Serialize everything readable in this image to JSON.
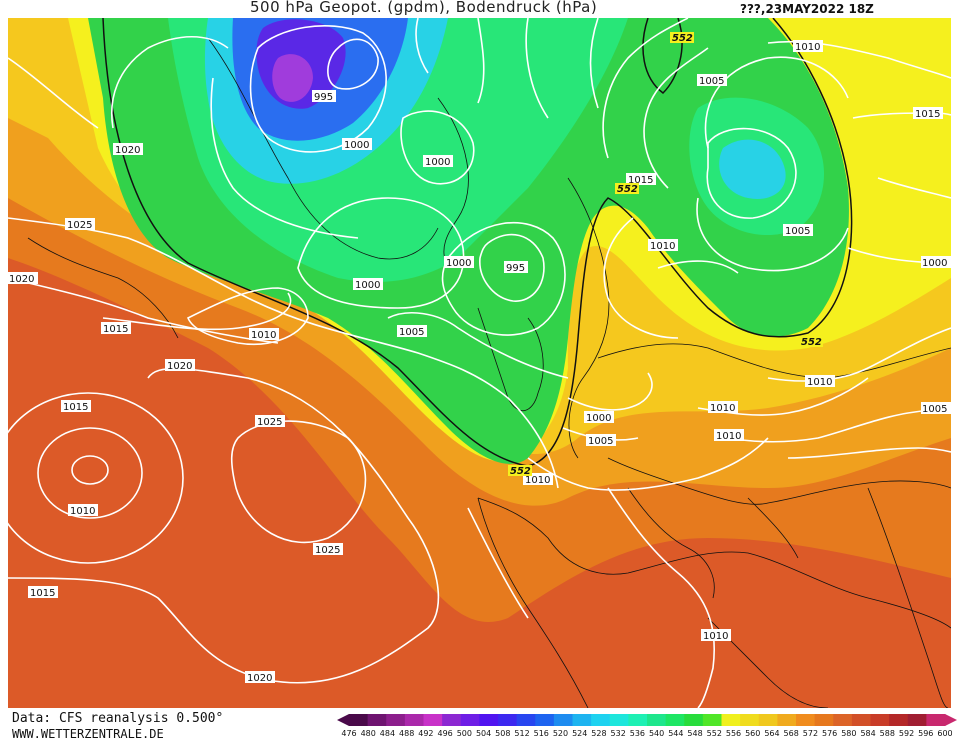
{
  "header": {
    "title": "500 hPa Geopot. (gpdm), Bodendruck (hPa)",
    "date": "???,23MAY2022 18Z"
  },
  "footer": {
    "source": "Data: CFS reanalysis 0.500°",
    "site": "WWW.WETTERZENTRALE.DE"
  },
  "colorbar": {
    "ticks": [
      "476",
      "480",
      "484",
      "488",
      "492",
      "496",
      "500",
      "504",
      "508",
      "512",
      "516",
      "520",
      "524",
      "528",
      "532",
      "536",
      "540",
      "544",
      "548",
      "552",
      "556",
      "560",
      "564",
      "568",
      "572",
      "576",
      "580",
      "584",
      "588",
      "592",
      "596",
      "600"
    ],
    "colors": [
      "#4a0a4a",
      "#6e1470",
      "#8c1e8c",
      "#aa28aa",
      "#c832c8",
      "#8c28d2",
      "#6e1ee6",
      "#5014f0",
      "#3c28f0",
      "#2846f0",
      "#1e64f0",
      "#1e8cf0",
      "#1eb4f0",
      "#1ed2f0",
      "#1ee6dc",
      "#1ef0b4",
      "#1ee68c",
      "#1ee664",
      "#28dc3c",
      "#50e628",
      "#f0f01e",
      "#f0dc1e",
      "#f0c81e",
      "#f0aa1e",
      "#f08c1e",
      "#e6781e",
      "#dc6428",
      "#d25028",
      "#c83c28",
      "#b42828",
      "#a01e32",
      "#c8286e"
    ]
  },
  "map": {
    "palette": {
      "deep_low": "#7a1ee6",
      "blue": "#2a6ef0",
      "cyan": "#28d2e6",
      "green_light": "#28e678",
      "green": "#32d24a",
      "yellow": "#f5f01e",
      "yellow_orange": "#f5c81e",
      "orange": "#f0a01e",
      "orange_dark": "#e67a1e",
      "red_orange": "#dc5a28",
      "red": "#d24628"
    },
    "isobar_labels": [
      "995",
      "1000",
      "1000",
      "995",
      "1000",
      "1000",
      "1005",
      "1020",
      "1025",
      "1020",
      "1015",
      "1010",
      "1020",
      "1015",
      "1010",
      "1015",
      "1025",
      "1025",
      "1020",
      "1010",
      "1005",
      "1000",
      "1010",
      "1010",
      "1005",
      "1015",
      "1010",
      "1005",
      "1010",
      "1015",
      "1000",
      "1005",
      "1010",
      "1010"
    ],
    "geopot_labels": [
      "552",
      "552",
      "552",
      "552"
    ]
  }
}
